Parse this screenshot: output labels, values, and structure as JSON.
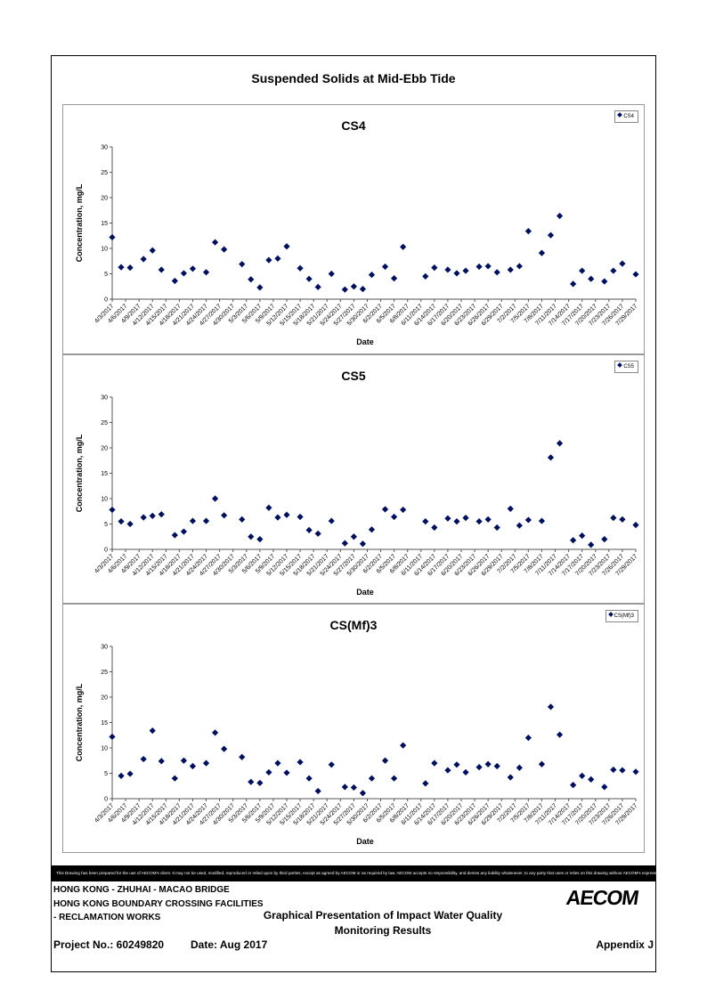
{
  "main_title": "Suspended Solids at Mid-Ebb Tide",
  "footer": {
    "line1": "HONG KONG - ZHUHAI - MACAO BRIDGE",
    "line2": "HONG KONG BOUNDARY CROSSING FACILITIES",
    "line3": "- RECLAMATION WORKS",
    "graph_title_1": "Graphical Presentation of Impact Water Quality",
    "graph_title_2": "Monitoring Results",
    "project_no": "Project No.: 60249820",
    "date": "Date: Aug 2017",
    "appendix": "Appendix J",
    "disclaimer": "This Drawing has been prepared for the use of AECOM's client. It may not be used, modified, reproduced or relied upon by third parties, except as agreed by AECOM or as required by law. AECOM accepts no responsibility, and denies any liability whatsoever, to any party that uses or relies on this drawing without AECOM's express written consent.",
    "logo": "AECOM"
  },
  "colors": {
    "marker": "#001060",
    "axis": "#555555"
  },
  "chart_data": [
    {
      "type": "scatter",
      "title": "CS4",
      "xlabel": "Date",
      "ylabel": "Concentration, mg/L",
      "ylim": [
        0,
        30
      ],
      "yticks": [
        0,
        5,
        10,
        15,
        20,
        25,
        30
      ],
      "legend": "top-right",
      "xtick_labels": [
        "4/3/2017",
        "4/6/2017",
        "4/9/2017",
        "4/12/2017",
        "4/15/2017",
        "4/18/2017",
        "4/21/2017",
        "4/24/2017",
        "4/27/2017",
        "4/30/2017",
        "5/3/2017",
        "5/6/2017",
        "5/9/2017",
        "5/12/2017",
        "5/15/2017",
        "5/18/2017",
        "5/21/2017",
        "5/24/2017",
        "5/27/2017",
        "5/30/2017",
        "6/2/2017",
        "6/5/2017",
        "6/8/2017",
        "6/11/2017",
        "6/14/2017",
        "6/17/2017",
        "6/20/2017",
        "6/23/2017",
        "6/26/2017",
        "6/29/2017",
        "7/2/2017",
        "7/5/2017",
        "7/8/2017",
        "7/11/2017",
        "7/14/2017",
        "7/17/2017",
        "7/20/2017",
        "7/23/2017",
        "7/26/2017",
        "7/29/2017"
      ],
      "series": [
        {
          "name": "CS4",
          "points": [
            [
              "4/3/2017",
              12.2
            ],
            [
              "4/5/2017",
              6.3
            ],
            [
              "4/7/2017",
              6.2
            ],
            [
              "4/10/2017",
              7.9
            ],
            [
              "4/12/2017",
              9.6
            ],
            [
              "4/14/2017",
              5.8
            ],
            [
              "4/17/2017",
              3.6
            ],
            [
              "4/19/2017",
              5.1
            ],
            [
              "4/21/2017",
              6.0
            ],
            [
              "4/24/2017",
              5.3
            ],
            [
              "4/26/2017",
              11.2
            ],
            [
              "4/28/2017",
              9.8
            ],
            [
              "5/2/2017",
              6.9
            ],
            [
              "5/4/2017",
              3.9
            ],
            [
              "5/6/2017",
              2.3
            ],
            [
              "5/8/2017",
              7.7
            ],
            [
              "5/10/2017",
              8.0
            ],
            [
              "5/12/2017",
              10.4
            ],
            [
              "5/15/2017",
              6.1
            ],
            [
              "5/17/2017",
              4.0
            ],
            [
              "5/19/2017",
              2.4
            ],
            [
              "5/22/2017",
              5.0
            ],
            [
              "5/25/2017",
              1.9
            ],
            [
              "5/27/2017",
              2.5
            ],
            [
              "5/29/2017",
              2.0
            ],
            [
              "5/31/2017",
              4.8
            ],
            [
              "6/3/2017",
              6.4
            ],
            [
              "6/5/2017",
              4.1
            ],
            [
              "6/7/2017",
              10.3
            ],
            [
              "6/12/2017",
              4.5
            ],
            [
              "6/14/2017",
              6.2
            ],
            [
              "6/17/2017",
              5.8
            ],
            [
              "6/19/2017",
              5.1
            ],
            [
              "6/21/2017",
              5.6
            ],
            [
              "6/24/2017",
              6.4
            ],
            [
              "6/26/2017",
              6.5
            ],
            [
              "6/28/2017",
              5.3
            ],
            [
              "7/1/2017",
              5.8
            ],
            [
              "7/3/2017",
              6.5
            ],
            [
              "7/5/2017",
              13.4
            ],
            [
              "7/8/2017",
              9.1
            ],
            [
              "7/10/2017",
              12.6
            ],
            [
              "7/12/2017",
              16.4
            ],
            [
              "7/15/2017",
              3.0
            ],
            [
              "7/17/2017",
              5.6
            ],
            [
              "7/19/2017",
              4.0
            ],
            [
              "7/22/2017",
              3.5
            ],
            [
              "7/24/2017",
              5.6
            ],
            [
              "7/26/2017",
              7.0
            ],
            [
              "7/29/2017",
              4.9
            ]
          ]
        }
      ]
    },
    {
      "type": "scatter",
      "title": "CS5",
      "xlabel": "Date",
      "ylabel": "Concentration, mg/L",
      "ylim": [
        0,
        30
      ],
      "yticks": [
        0,
        5,
        10,
        15,
        20,
        25,
        30
      ],
      "legend": "top-right",
      "xtick_labels": [
        "4/3/2017",
        "4/6/2017",
        "4/9/2017",
        "4/12/2017",
        "4/15/2017",
        "4/18/2017",
        "4/21/2017",
        "4/24/2017",
        "4/27/2017",
        "4/30/2017",
        "5/3/2017",
        "5/6/2017",
        "5/9/2017",
        "5/12/2017",
        "5/15/2017",
        "5/18/2017",
        "5/21/2017",
        "5/24/2017",
        "5/27/2017",
        "5/30/2017",
        "6/2/2017",
        "6/5/2017",
        "6/8/2017",
        "6/11/2017",
        "6/14/2017",
        "6/17/2017",
        "6/20/2017",
        "6/23/2017",
        "6/26/2017",
        "6/29/2017",
        "7/2/2017",
        "7/5/2017",
        "7/8/2017",
        "7/11/2017",
        "7/14/2017",
        "7/17/2017",
        "7/20/2017",
        "7/23/2017",
        "7/26/2017",
        "7/29/2017"
      ],
      "series": [
        {
          "name": "CS5",
          "points": [
            [
              "4/3/2017",
              7.8
            ],
            [
              "4/5/2017",
              5.5
            ],
            [
              "4/7/2017",
              5.0
            ],
            [
              "4/10/2017",
              6.3
            ],
            [
              "4/12/2017",
              6.6
            ],
            [
              "4/14/2017",
              6.9
            ],
            [
              "4/17/2017",
              2.8
            ],
            [
              "4/19/2017",
              3.5
            ],
            [
              "4/21/2017",
              5.6
            ],
            [
              "4/24/2017",
              5.6
            ],
            [
              "4/26/2017",
              10.0
            ],
            [
              "4/28/2017",
              6.7
            ],
            [
              "5/2/2017",
              5.9
            ],
            [
              "5/4/2017",
              2.5
            ],
            [
              "5/6/2017",
              2.0
            ],
            [
              "5/8/2017",
              8.2
            ],
            [
              "5/10/2017",
              6.3
            ],
            [
              "5/12/2017",
              6.8
            ],
            [
              "5/15/2017",
              6.4
            ],
            [
              "5/17/2017",
              3.8
            ],
            [
              "5/19/2017",
              3.1
            ],
            [
              "5/22/2017",
              5.6
            ],
            [
              "5/25/2017",
              1.2
            ],
            [
              "5/27/2017",
              2.5
            ],
            [
              "5/29/2017",
              1.1
            ],
            [
              "5/31/2017",
              3.9
            ],
            [
              "6/3/2017",
              7.9
            ],
            [
              "6/5/2017",
              6.4
            ],
            [
              "6/7/2017",
              7.8
            ],
            [
              "6/12/2017",
              5.5
            ],
            [
              "6/14/2017",
              4.3
            ],
            [
              "6/17/2017",
              6.1
            ],
            [
              "6/19/2017",
              5.5
            ],
            [
              "6/21/2017",
              6.2
            ],
            [
              "6/24/2017",
              5.5
            ],
            [
              "6/26/2017",
              5.9
            ],
            [
              "6/28/2017",
              4.3
            ],
            [
              "7/1/2017",
              8.0
            ],
            [
              "7/3/2017",
              4.7
            ],
            [
              "7/5/2017",
              5.8
            ],
            [
              "7/8/2017",
              5.6
            ],
            [
              "7/10/2017",
              18.1
            ],
            [
              "7/12/2017",
              20.9
            ],
            [
              "7/15/2017",
              1.8
            ],
            [
              "7/17/2017",
              2.7
            ],
            [
              "7/19/2017",
              0.9
            ],
            [
              "7/22/2017",
              2.0
            ],
            [
              "7/24/2017",
              6.2
            ],
            [
              "7/26/2017",
              5.9
            ],
            [
              "7/29/2017",
              4.8
            ]
          ]
        }
      ]
    },
    {
      "type": "scatter",
      "title": "CS(Mf)3",
      "xlabel": "Date",
      "ylabel": "Concentration, mg/L",
      "ylim": [
        0,
        30
      ],
      "yticks": [
        0,
        5,
        10,
        15,
        20,
        25,
        30
      ],
      "legend": "top-right",
      "xtick_labels": [
        "4/3/2017",
        "4/6/2017",
        "4/9/2017",
        "4/12/2017",
        "4/15/2017",
        "4/18/2017",
        "4/21/2017",
        "4/24/2017",
        "4/27/2017",
        "4/30/2017",
        "5/3/2017",
        "5/6/2017",
        "5/9/2017",
        "5/12/2017",
        "5/15/2017",
        "5/18/2017",
        "5/21/2017",
        "5/24/2017",
        "5/27/2017",
        "5/30/2017",
        "6/2/2017",
        "6/5/2017",
        "6/8/2017",
        "6/11/2017",
        "6/14/2017",
        "6/17/2017",
        "6/20/2017",
        "6/23/2017",
        "6/26/2017",
        "6/29/2017",
        "7/2/2017",
        "7/5/2017",
        "7/8/2017",
        "7/11/2017",
        "7/14/2017",
        "7/17/2017",
        "7/20/2017",
        "7/23/2017",
        "7/26/2017",
        "7/29/2017"
      ],
      "series": [
        {
          "name": "CS(Mf)3",
          "points": [
            [
              "4/3/2017",
              12.2
            ],
            [
              "4/5/2017",
              4.5
            ],
            [
              "4/7/2017",
              4.9
            ],
            [
              "4/10/2017",
              7.8
            ],
            [
              "4/12/2017",
              13.4
            ],
            [
              "4/14/2017",
              7.4
            ],
            [
              "4/17/2017",
              4.0
            ],
            [
              "4/19/2017",
              7.5
            ],
            [
              "4/21/2017",
              6.4
            ],
            [
              "4/24/2017",
              7.0
            ],
            [
              "4/26/2017",
              13.0
            ],
            [
              "4/28/2017",
              9.8
            ],
            [
              "5/2/2017",
              8.2
            ],
            [
              "5/4/2017",
              3.3
            ],
            [
              "5/6/2017",
              3.1
            ],
            [
              "5/8/2017",
              5.2
            ],
            [
              "5/10/2017",
              7.0
            ],
            [
              "5/12/2017",
              5.1
            ],
            [
              "5/15/2017",
              7.2
            ],
            [
              "5/17/2017",
              4.0
            ],
            [
              "5/19/2017",
              1.5
            ],
            [
              "5/22/2017",
              6.7
            ],
            [
              "5/25/2017",
              2.3
            ],
            [
              "5/27/2017",
              2.2
            ],
            [
              "5/29/2017",
              1.1
            ],
            [
              "5/31/2017",
              4.0
            ],
            [
              "6/3/2017",
              7.5
            ],
            [
              "6/5/2017",
              4.0
            ],
            [
              "6/7/2017",
              10.5
            ],
            [
              "6/12/2017",
              3.0
            ],
            [
              "6/14/2017",
              7.0
            ],
            [
              "6/17/2017",
              5.6
            ],
            [
              "6/19/2017",
              6.7
            ],
            [
              "6/21/2017",
              5.2
            ],
            [
              "6/24/2017",
              6.2
            ],
            [
              "6/26/2017",
              6.8
            ],
            [
              "6/28/2017",
              6.4
            ],
            [
              "7/1/2017",
              4.2
            ],
            [
              "7/3/2017",
              6.1
            ],
            [
              "7/5/2017",
              12.0
            ],
            [
              "7/8/2017",
              6.8
            ],
            [
              "7/10/2017",
              18.1
            ],
            [
              "7/12/2017",
              12.6
            ],
            [
              "7/15/2017",
              2.7
            ],
            [
              "7/17/2017",
              4.5
            ],
            [
              "7/19/2017",
              3.8
            ],
            [
              "7/22/2017",
              2.3
            ],
            [
              "7/24/2017",
              5.7
            ],
            [
              "7/26/2017",
              5.6
            ],
            [
              "7/29/2017",
              5.3
            ]
          ]
        }
      ]
    }
  ]
}
